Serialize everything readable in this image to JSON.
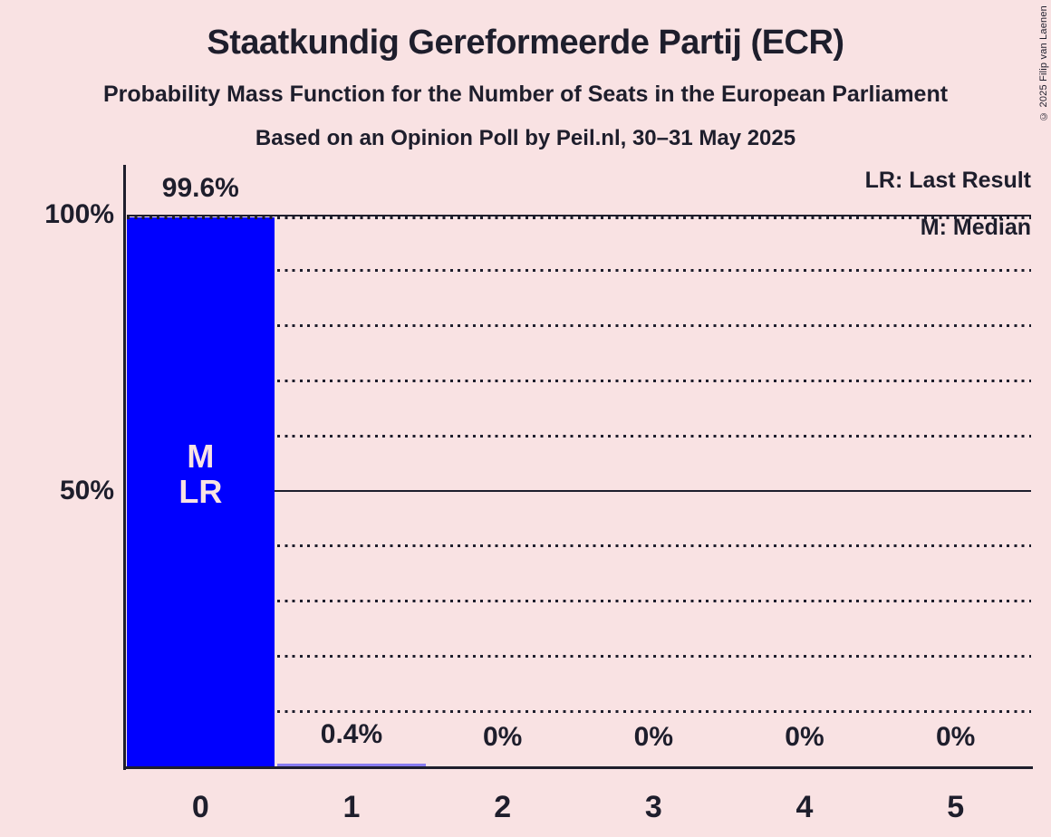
{
  "title": "Staatkundig Gereformeerde Partij (ECR)",
  "subtitle": "Probability Mass Function for the Number of Seats in the European Parliament",
  "poll_info": "Based on an Opinion Poll by Peil.nl, 30–31 May 2025",
  "copyright": "© 2025 Filip van Laenen",
  "legend": {
    "lr": "LR: Last Result",
    "m": "M: Median"
  },
  "colors": {
    "background": "#f9e2e3",
    "ink": "#1e1e2c",
    "bar": "#0000ff",
    "bar_inner_label": "#f9e2e3"
  },
  "chart_data": {
    "type": "bar",
    "categories": [
      "0",
      "1",
      "2",
      "3",
      "4",
      "5"
    ],
    "values": [
      99.6,
      0.4,
      0,
      0,
      0,
      0
    ],
    "value_labels": [
      "99.6%",
      "0.4%",
      "0%",
      "0%",
      "0%",
      "0%"
    ],
    "xlabel": "",
    "ylabel": "",
    "ylim": [
      0,
      100
    ],
    "y_ticks": [
      {
        "value": 100,
        "label": "100%"
      },
      {
        "value": 50,
        "label": "50%"
      }
    ],
    "gridlines": {
      "dotted_every_pct": 10,
      "solid_at_pct": [
        50,
        100
      ],
      "max_value_dotted_line_pct": 99.6
    },
    "markers": {
      "median_label": "M",
      "last_result_label": "LR",
      "median_category": "0",
      "last_result_category": "0"
    },
    "legend_position": "top-right",
    "title": "Staatkundig Gereformeerde Partij (ECR)"
  }
}
